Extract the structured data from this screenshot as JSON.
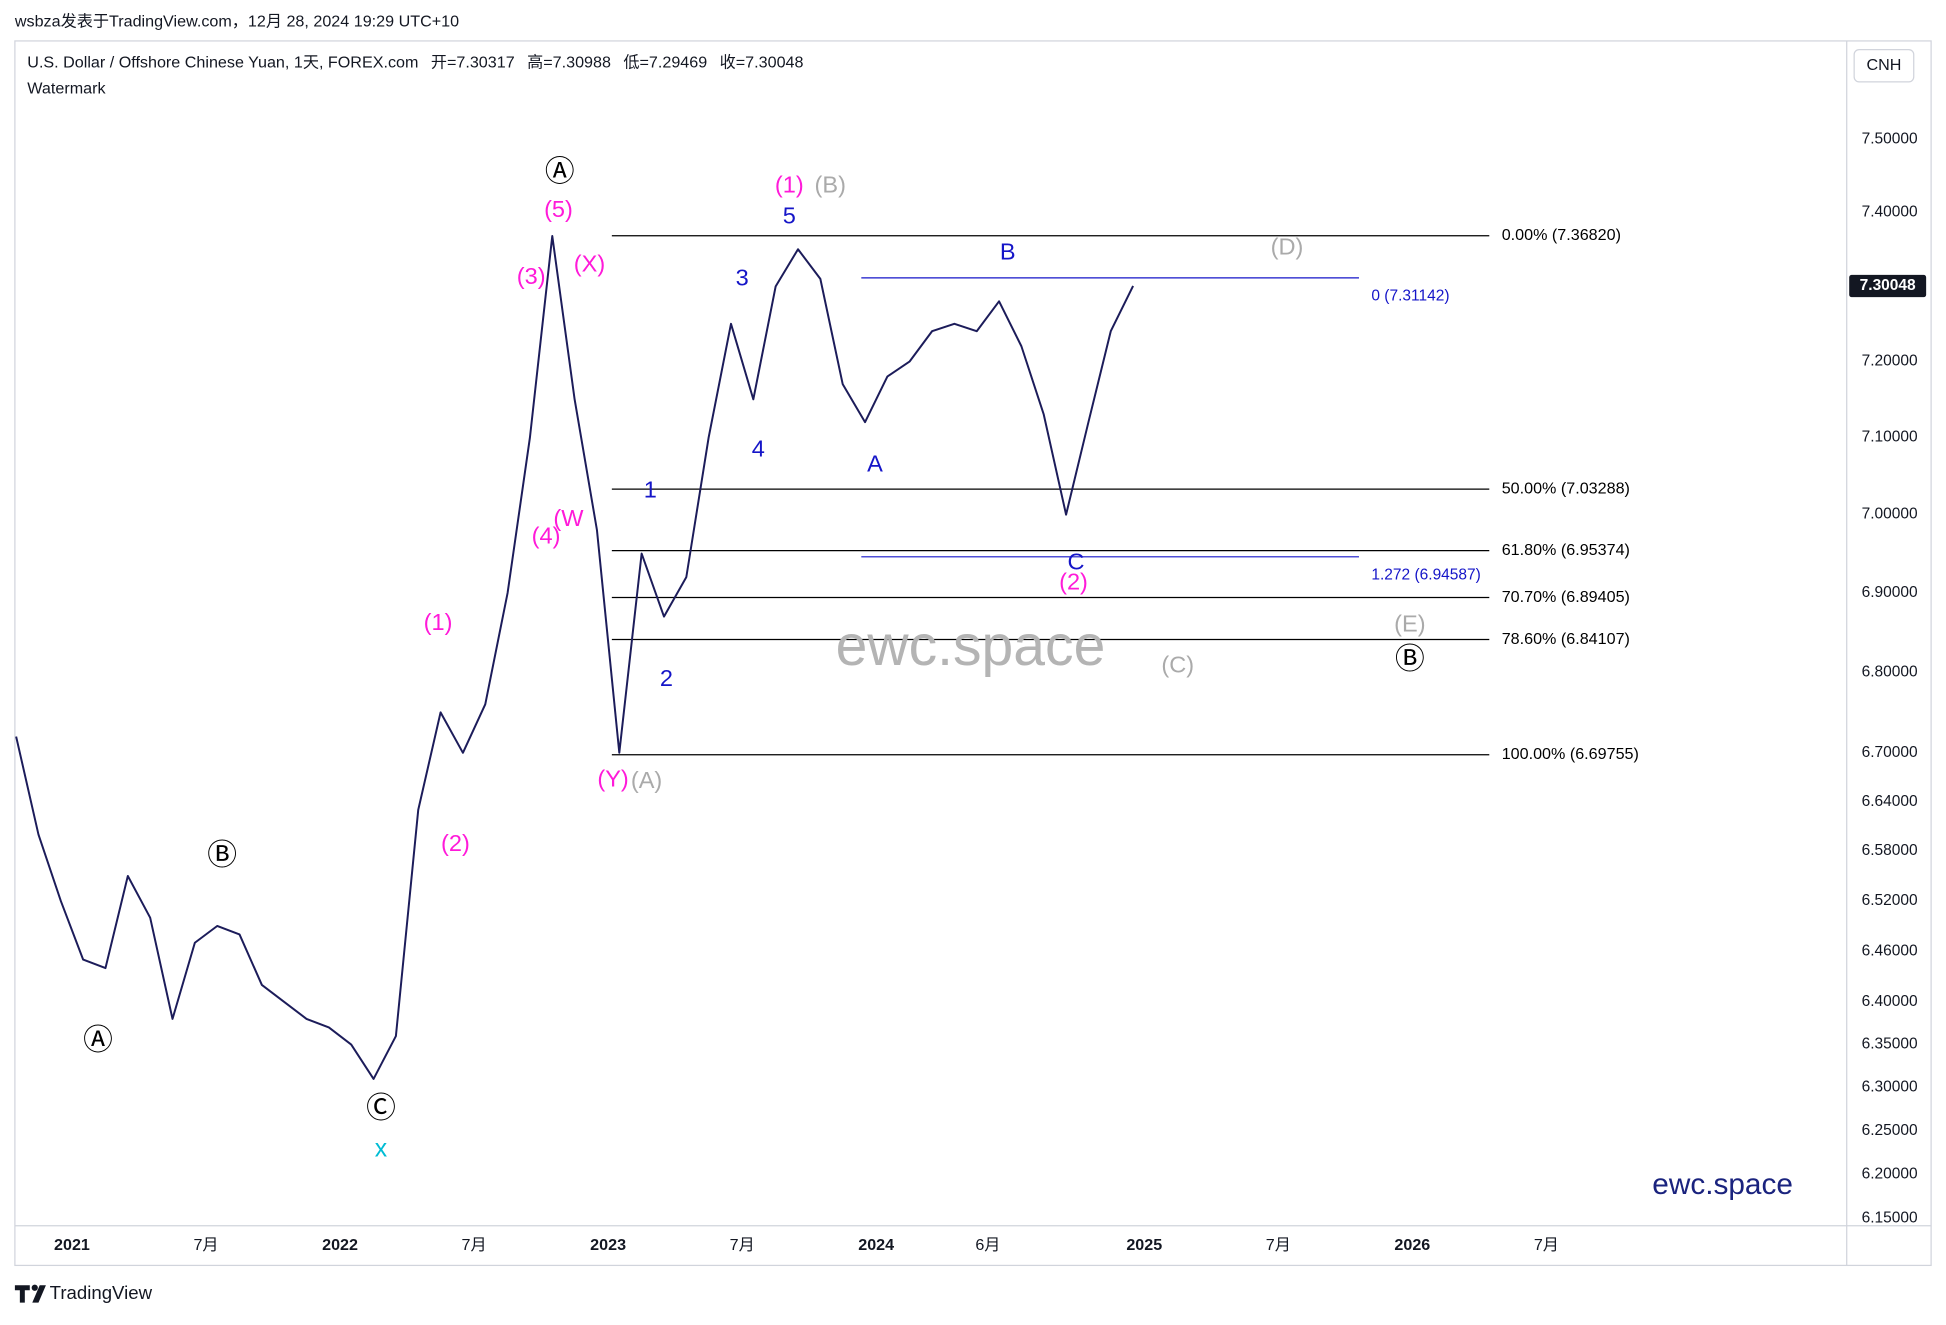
{
  "header": {
    "byline": "wsbza发表于TradingView.com，12月 28, 2024 19:29 UTC+10",
    "symbol": "U.S. Dollar / Offshore Chinese Yuan, 1天, FOREX.com",
    "ohlc": [
      "开=7.30317",
      "高=7.30988",
      "低=7.29469",
      "收=7.30048"
    ],
    "subtitle": "Watermark",
    "currency": "CNH",
    "brand": "TradingView"
  },
  "chart_data": {
    "type": "line",
    "color": "#1c1c5a",
    "log_scale": true,
    "x": [
      "2020-10",
      "2020-11",
      "2020-12",
      "2021-01",
      "2021-02",
      "2021-03",
      "2021-04",
      "2021-05",
      "2021-06",
      "2021-07",
      "2021-08",
      "2021-09",
      "2021-10",
      "2021-11",
      "2021-12",
      "2022-01",
      "2022-02",
      "2022-03",
      "2022-04",
      "2022-05",
      "2022-06",
      "2022-07",
      "2022-08",
      "2022-09",
      "2022-10",
      "2022-11",
      "2022-12",
      "2023-01",
      "2023-02",
      "2023-03",
      "2023-04",
      "2023-05",
      "2023-06",
      "2023-07",
      "2023-08",
      "2023-09",
      "2023-10",
      "2023-11",
      "2023-12",
      "2024-01",
      "2024-02",
      "2024-03",
      "2024-04",
      "2024-05",
      "2024-06",
      "2024-07",
      "2024-08",
      "2024-09",
      "2024-10",
      "2024-11",
      "2024-12"
    ],
    "values": [
      6.72,
      6.6,
      6.52,
      6.45,
      6.44,
      6.55,
      6.5,
      6.38,
      6.47,
      6.49,
      6.48,
      6.42,
      6.4,
      6.38,
      6.37,
      6.35,
      6.31,
      6.36,
      6.63,
      6.75,
      6.7,
      6.76,
      6.9,
      7.1,
      7.368,
      7.15,
      6.98,
      6.7,
      6.95,
      6.87,
      6.92,
      7.1,
      7.25,
      7.15,
      7.3,
      7.35,
      7.31,
      7.17,
      7.12,
      7.18,
      7.2,
      7.24,
      7.25,
      7.24,
      7.28,
      7.22,
      7.13,
      7.0,
      7.12,
      7.24,
      7.30048
    ],
    "last_price": 7.30048,
    "xlim": [
      "2020-10",
      "2027-08"
    ],
    "xticks": [
      {
        "value": "2021-01",
        "label": "2021"
      },
      {
        "value": "2021-07",
        "label": "7月"
      },
      {
        "value": "2022-01",
        "label": "2022"
      },
      {
        "value": "2022-07",
        "label": "7月"
      },
      {
        "value": "2023-01",
        "label": "2023"
      },
      {
        "value": "2023-07",
        "label": "7月"
      },
      {
        "value": "2024-01",
        "label": "2024"
      },
      {
        "value": "2024-06",
        "label": "6月"
      },
      {
        "value": "2025-01",
        "label": "2025"
      },
      {
        "value": "2025-07",
        "label": "7月"
      },
      {
        "value": "2026-01",
        "label": "2026"
      },
      {
        "value": "2026-07",
        "label": "7月"
      }
    ],
    "ylim": [
      6.142,
      7.637
    ],
    "yticks": [
      {
        "value": 7.5,
        "label": "7.50000"
      },
      {
        "value": 7.4,
        "label": "7.40000"
      },
      {
        "value": 7.2,
        "label": "7.20000"
      },
      {
        "value": 7.1,
        "label": "7.10000"
      },
      {
        "value": 7.0,
        "label": "7.00000"
      },
      {
        "value": 6.9,
        "label": "6.90000"
      },
      {
        "value": 6.8,
        "label": "6.80000"
      },
      {
        "value": 6.7,
        "label": "6.70000"
      },
      {
        "value": 6.64,
        "label": "6.64000"
      },
      {
        "value": 6.58,
        "label": "6.58000"
      },
      {
        "value": 6.52,
        "label": "6.52000"
      },
      {
        "value": 6.46,
        "label": "6.46000"
      },
      {
        "value": 6.4,
        "label": "6.40000"
      },
      {
        "value": 6.35,
        "label": "6.35000"
      },
      {
        "value": 6.3,
        "label": "6.30000"
      },
      {
        "value": 6.25,
        "label": "6.25000"
      },
      {
        "value": 6.2,
        "label": "6.20000"
      },
      {
        "value": 6.15,
        "label": "6.15000"
      }
    ],
    "levels": [
      {
        "value": 7.3682,
        "label": "0.00% (7.36820)",
        "color": "#000000"
      },
      {
        "value": 7.03288,
        "label": "50.00% (7.03288)",
        "color": "#000000"
      },
      {
        "value": 6.95374,
        "label": "61.80% (6.95374)",
        "color": "#000000"
      },
      {
        "value": 6.89405,
        "label": "70.70% (6.89405)",
        "color": "#000000"
      },
      {
        "value": 6.84107,
        "label": "78.60% (6.84107)",
        "color": "#000000"
      },
      {
        "value": 6.69755,
        "label": "100.00% (6.69755)",
        "color": "#000000"
      },
      {
        "value": 7.31142,
        "label": "0 (7.31142)",
        "color": "#1515c8"
      },
      {
        "value": 6.94587,
        "label": "1.272 (6.94587)",
        "color": "#1515c8"
      }
    ],
    "annotations": [
      {
        "text": "Ⓐ",
        "color": "#000000"
      },
      {
        "text": "Ⓑ",
        "color": "#000000"
      },
      {
        "text": "Ⓒ",
        "color": "#000000"
      },
      {
        "text": "x",
        "color": "#00bcd4"
      },
      {
        "text": "(1)",
        "color": "#ff1ad9"
      },
      {
        "text": "(2)",
        "color": "#ff1ad9"
      },
      {
        "text": "(3)",
        "color": "#ff1ad9"
      },
      {
        "text": "(4)",
        "color": "#ff1ad9"
      },
      {
        "text": "(5)",
        "color": "#ff1ad9"
      },
      {
        "text": "Ⓐ",
        "color": "#000000"
      },
      {
        "text": "(X)",
        "color": "#ff1ad9"
      },
      {
        "text": "(W",
        "color": "#ff1ad9"
      },
      {
        "text": "(Y)",
        "color": "#ff1ad9"
      },
      {
        "text": "(A)",
        "color": "#aaaaaa"
      },
      {
        "text": "1",
        "color": "#1515c8"
      },
      {
        "text": "2",
        "color": "#1515c8"
      },
      {
        "text": "3",
        "color": "#1515c8"
      },
      {
        "text": "4",
        "color": "#1515c8"
      },
      {
        "text": "5",
        "color": "#1515c8"
      },
      {
        "text": "(1)",
        "color": "#ff1ad9"
      },
      {
        "text": "(B)",
        "color": "#aaaaaa"
      },
      {
        "text": "A",
        "color": "#1515c8"
      },
      {
        "text": "B",
        "color": "#1515c8"
      },
      {
        "text": "C",
        "color": "#1515c8"
      },
      {
        "text": "(2)",
        "color": "#ff1ad9"
      },
      {
        "text": "(D)",
        "color": "#aaaaaa"
      },
      {
        "text": "(C)",
        "color": "#aaaaaa"
      },
      {
        "text": "(E)",
        "color": "#aaaaaa"
      },
      {
        "text": "Ⓑ",
        "color": "#000000"
      },
      {
        "text": "ewc.space",
        "color": "#b4b4b4"
      },
      {
        "text": "ewc.space",
        "color": "#1a237e"
      }
    ]
  }
}
